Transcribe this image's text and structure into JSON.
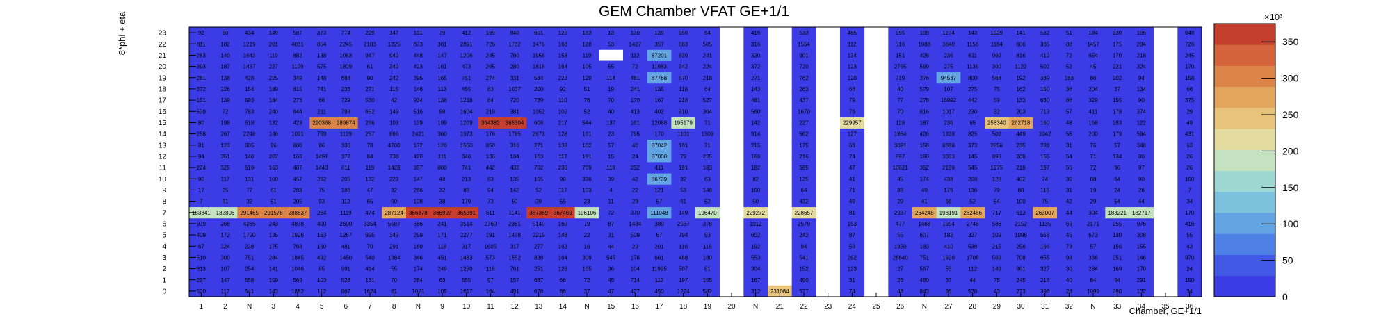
{
  "chart_data": {
    "type": "heatmap",
    "title": "GEM Chamber VFAT GE+1/1",
    "xlabel": "Chamber, GE+1/1",
    "ylabel": "8*phi + eta",
    "x_tick_labels": [
      "1",
      "2",
      "N",
      "3",
      "4",
      "5",
      "6",
      "7",
      "8",
      "N",
      "9",
      "10",
      "11",
      "12",
      "13",
      "14",
      "N",
      "15",
      "16",
      "17",
      "18",
      "19",
      "20",
      "N",
      "21",
      "22",
      "23",
      "24",
      "25",
      "26",
      "N",
      "27",
      "28",
      "29",
      "30",
      "31",
      "32",
      "N",
      "33",
      "34",
      "35",
      "36"
    ],
    "y_tick_labels": [
      "0",
      "1",
      "2",
      "3",
      "4",
      "5",
      "6",
      "7",
      "8",
      "9",
      "10",
      "11",
      "12",
      "13",
      "14",
      "15",
      "16",
      "17",
      "18",
      "19",
      "20",
      "21",
      "22",
      "23"
    ],
    "colorbar": {
      "min": 0,
      "max": 375000,
      "ticks": [
        0,
        50,
        100,
        150,
        200,
        250,
        300,
        350
      ],
      "multiplier": "×10³"
    },
    "colors": [
      "#3c3ce6",
      "#4258e6",
      "#4f80e6",
      "#62a4e4",
      "#7cc2dc",
      "#9ed6d2",
      "#c4e2bf",
      "#e3dba0",
      "#e8c47a",
      "#e4a65c",
      "#dd8548",
      "#d4623a",
      "#c63f2e"
    ],
    "empty_columns": [
      "20",
      "N",
      "23",
      "25",
      "35"
    ],
    "rows": [
      {
        "y": "0",
        "values": [
          520,
          117,
          541,
          143,
          1882,
          112,
          867,
          1624,
          61,
          1021,
          105,
          1617,
          164,
          491,
          676,
          86,
          37,
          47,
          427,
          450,
          1274,
          582,
          null,
          312,
          231084,
          577,
          null,
          74,
          null,
          48,
          843,
          96,
          528,
          43,
          273,
          396,
          28,
          1099,
          280,
          132,
          null,
          34
        ]
      },
      {
        "y": "1",
        "values": [
          297,
          147,
          558,
          159,
          569,
          103,
          528,
          131,
          70,
          284,
          63,
          555,
          97,
          157,
          687,
          66,
          72,
          45,
          714,
          113,
          197,
          155,
          null,
          167,
          null,
          490,
          null,
          31,
          null,
          26,
          480,
          37,
          44,
          75,
          245,
          218,
          40,
          84,
          94,
          291,
          null,
          150
        ]
      },
      {
        "y": "2",
        "values": [
          313,
          107,
          254,
          141,
          1046,
          85,
          991,
          414,
          55,
          174,
          249,
          1280,
          118,
          761,
          251,
          126,
          165,
          36,
          104,
          11995,
          507,
          81,
          null,
          304,
          null,
          152,
          null,
          123,
          null,
          27,
          567,
          53,
          112,
          149,
          861,
          327,
          30,
          284,
          169,
          170,
          null,
          24
        ]
      },
      {
        "y": "3",
        "values": [
          510,
          300,
          751,
          284,
          1845,
          492,
          1450,
          540,
          1384,
          346,
          451,
          1483,
          573,
          1552,
          838,
          164,
          309,
          545,
          176,
          661,
          488,
          180,
          null,
          553,
          null,
          541,
          null,
          262,
          null,
          28640,
          751,
          1926,
          1708,
          569,
          708,
          655,
          98,
          336,
          251,
          146,
          null,
          970
        ]
      },
      {
        "y": "4",
        "values": [
          67,
          324,
          238,
          175,
          768,
          160,
          481,
          70,
          291,
          180,
          118,
          317,
          1605,
          317,
          277,
          163,
          16,
          44,
          29,
          201,
          116,
          118,
          null,
          192,
          null,
          94,
          null,
          56,
          null,
          1950,
          163,
          410,
          538,
          215,
          256,
          166,
          78,
          57,
          156,
          155,
          null,
          43
        ]
      },
      {
        "y": "5",
        "values": [
          409,
          172,
          1790,
          135,
          1926,
          163,
          1267,
          995,
          349,
          259,
          171,
          2277,
          191,
          1478,
          2215,
          148,
          22,
          31,
          509,
          67,
          794,
          93,
          null,
          602,
          null,
          242,
          null,
          87,
          null,
          55,
          607,
          182,
          327,
          109,
          1096,
          558,
          45,
          673,
          130,
          308,
          null,
          55
        ]
      },
      {
        "y": "6",
        "values": [
          979,
          268,
          4285,
          243,
          4878,
          400,
          2600,
          3354,
          5587,
          686,
          241,
          3514,
          2760,
          2361,
          5140,
          160,
          79,
          87,
          1484,
          380,
          2567,
          378,
          null,
          1012,
          null,
          2579,
          null,
          153,
          null,
          477,
          1468,
          1954,
          2748,
          586,
          2152,
          1135,
          69,
          2171,
          255,
          976,
          null,
          416
        ]
      },
      {
        "y": "7",
        "values": [
          183841,
          182806,
          291465,
          291578,
          288837,
          264,
          1119,
          474,
          287124,
          366378,
          366997,
          365891,
          611,
          1141,
          367369,
          367469,
          196106,
          72,
          370,
          111048,
          149,
          196470,
          null,
          229272,
          null,
          228657,
          null,
          81,
          null,
          2937,
          264248,
          198191,
          262486,
          717,
          613,
          263007,
          44,
          304,
          183221,
          182717,
          null,
          170
        ]
      },
      {
        "y": "8",
        "values": [
          7,
          61,
          32,
          51,
          205,
          93,
          112,
          65,
          60,
          108,
          38,
          179,
          73,
          50,
          39,
          55,
          23,
          11,
          28,
          57,
          61,
          52,
          null,
          50,
          null,
          432,
          null,
          49,
          null,
          29,
          41,
          66,
          52,
          54,
          100,
          75,
          42,
          29,
          54,
          44,
          null,
          34
        ]
      },
      {
        "y": "9",
        "values": [
          17,
          25,
          77,
          61,
          283,
          75,
          186,
          47,
          32,
          286,
          32,
          88,
          94,
          142,
          52,
          117,
          103,
          4,
          22,
          121,
          53,
          148,
          null,
          100,
          null,
          64,
          null,
          71,
          null,
          38,
          49,
          176,
          136,
          79,
          80,
          116,
          31,
          19,
          24,
          26,
          null,
          7
        ]
      },
      {
        "y": "10",
        "values": [
          90,
          117,
          131,
          100,
          457,
          262,
          205,
          132,
          223,
          147,
          48,
          213,
          83,
          135,
          105,
          99,
          336,
          39,
          42,
          86739,
          32,
          63,
          null,
          82,
          null,
          125,
          null,
          41,
          null,
          45,
          174,
          438,
          208,
          128,
          402,
          74,
          30,
          88,
          64,
          90,
          null,
          100
        ]
      },
      {
        "y": "11",
        "values": [
          224,
          525,
          619,
          163,
          407,
          1443,
          611,
          119,
          1428,
          357,
          800,
          741,
          442,
          432,
          702,
          236,
          709,
          118,
          252,
          411,
          191,
          183,
          null,
          182,
          null,
          595,
          null,
          47,
          null,
          10621,
          362,
          2169,
          545,
          1275,
          218,
          197,
          56,
          72,
          96,
          97,
          null,
          26
        ]
      },
      {
        "y": "12",
        "values": [
          94,
          351,
          140,
          202,
          163,
          1491,
          372,
          84,
          738,
          420,
          111,
          340,
          136,
          194,
          103,
          117,
          191,
          15,
          24,
          87000,
          79,
          225,
          null,
          169,
          null,
          216,
          null,
          74,
          null,
          597,
          190,
          3363,
          145,
          993,
          208,
          155,
          54,
          71,
          134,
          80,
          null,
          26
        ]
      },
      {
        "y": "13",
        "values": [
          81,
          123,
          305,
          96,
          800,
          96,
          336,
          78,
          4700,
          172,
          120,
          1560,
          850,
          310,
          271,
          133,
          162,
          57,
          40,
          87042,
          101,
          71,
          null,
          215,
          null,
          175,
          null,
          68,
          null,
          3091,
          158,
          8388,
          373,
          2856,
          235,
          239,
          31,
          76,
          57,
          348,
          null,
          63
        ]
      },
      {
        "y": "14",
        "values": [
          258,
          267,
          2248,
          146,
          1091,
          769,
          1129,
          257,
          866,
          2421,
          360,
          1973,
          176,
          1785,
          2673,
          128,
          161,
          23,
          795,
          170,
          1101,
          1309,
          null,
          914,
          null,
          562,
          null,
          127,
          null,
          1854,
          426,
          1328,
          825,
          502,
          449,
          1042,
          55,
          200,
          179,
          594,
          null,
          431
        ]
      },
      {
        "y": "15",
        "values": [
          80,
          198,
          518,
          132,
          423,
          290368,
          289874,
          266,
          103,
          139,
          199,
          1269,
          364382,
          365304,
          608,
          217,
          544,
          137,
          161,
          12088,
          195179,
          71,
          null,
          142,
          null,
          227,
          null,
          229957,
          null,
          128,
          187,
          236,
          65,
          258340,
          262718,
          160,
          48,
          168,
          283,
          122,
          null,
          49
        ]
      },
      {
        "y": "16",
        "values": [
          530,
          72,
          783,
          240,
          644,
          211,
          798,
          652,
          149,
          516,
          98,
          1604,
          219,
          381,
          1052,
          102,
          52,
          40,
          413,
          402,
          910,
          304,
          null,
          560,
          null,
          1670,
          null,
          76,
          null,
          70,
          816,
          1017,
          230,
          32,
          203,
          713,
          57,
          411,
          178,
          374,
          null,
          29
        ]
      },
      {
        "y": "17",
        "values": [
          151,
          139,
          593,
          184,
          273,
          68,
          729,
          530,
          42,
          934,
          138,
          1218,
          84,
          720,
          739,
          110,
          76,
          70,
          170,
          167,
          218,
          527,
          null,
          481,
          null,
          437,
          null,
          79,
          null,
          77,
          278,
          15992,
          442,
          59,
          133,
          630,
          86,
          329,
          155,
          90,
          null,
          375
        ]
      },
      {
        "y": "18",
        "values": [
          372,
          226,
          154,
          189,
          815,
          741,
          233,
          271,
          115,
          146,
          113,
          455,
          83,
          1037,
          200,
          92,
          51,
          19,
          241,
          135,
          118,
          64,
          null,
          143,
          null,
          263,
          null,
          68,
          null,
          40,
          579,
          107,
          275,
          75,
          162,
          150,
          36,
          204,
          37,
          134,
          null,
          66
        ]
      },
      {
        "y": "19",
        "values": [
          281,
          138,
          428,
          225,
          349,
          148,
          688,
          90,
          242,
          395,
          165,
          751,
          274,
          331,
          534,
          223,
          129,
          114,
          481,
          87768,
          570,
          218,
          null,
          271,
          null,
          762,
          null,
          120,
          null,
          719,
          376,
          94537,
          800,
          568,
          192,
          339,
          183,
          86,
          202,
          94,
          null,
          158
        ]
      },
      {
        "y": "20",
        "values": [
          393,
          187,
          1437,
          227,
          1199,
          575,
          1829,
          61,
          349,
          423,
          161,
          473,
          265,
          280,
          1818,
          164,
          105,
          55,
          72,
          11983,
          342,
          224,
          null,
          372,
          null,
          720,
          null,
          123,
          null,
          2765,
          569,
          275,
          1136,
          300,
          1122,
          502,
          52,
          45,
          221,
          324,
          null,
          170
        ]
      },
      {
        "y": "21",
        "values": [
          283,
          140,
          1643,
          119,
          882,
          138,
          1083,
          947,
          949,
          448,
          147,
          1206,
          245,
          760,
          1956,
          158,
          119,
          null,
          112,
          87201,
          639,
          241,
          null,
          320,
          null,
          901,
          null,
          134,
          null,
          151,
          428,
          236,
          611,
          969,
          816,
          419,
          72,
          654,
          170,
          218,
          null,
          245
        ]
      },
      {
        "y": "22",
        "values": [
          811,
          182,
          1219,
          201,
          4031,
          854,
          2245,
          2103,
          1325,
          873,
          361,
          2891,
          726,
          1732,
          1476,
          168,
          128,
          53,
          1427,
          357,
          383,
          505,
          null,
          316,
          null,
          1554,
          null,
          112,
          null,
          516,
          1088,
          3640,
          1156,
          1184,
          606,
          365,
          88,
          1457,
          175,
          204,
          null,
          726
        ]
      },
      {
        "y": "23",
        "values": [
          92,
          60,
          434,
          149,
          587,
          373,
          774,
          229,
          147,
          131,
          79,
          412,
          169,
          840,
          601,
          125,
          183,
          13,
          130,
          139,
          356,
          64,
          null,
          416,
          null,
          533,
          null,
          485,
          null,
          255,
          198,
          1274,
          143,
          1929,
          141,
          532,
          51,
          184,
          230,
          196,
          null,
          648
        ]
      }
    ]
  }
}
